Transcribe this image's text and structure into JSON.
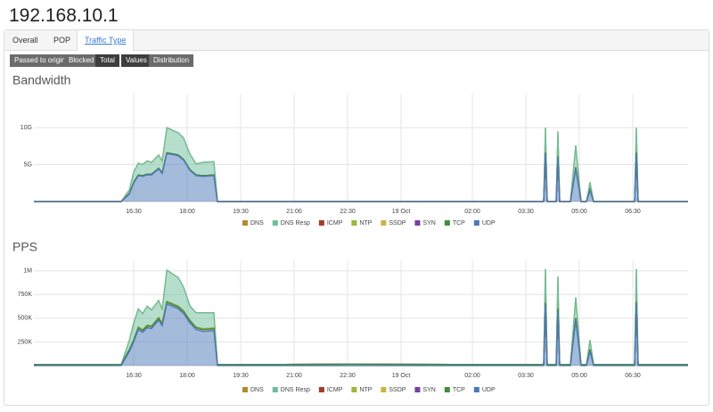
{
  "header": {
    "title": "192.168.10.1"
  },
  "tabs": [
    "Overall",
    "POP",
    "Traffic Type"
  ],
  "filters": [
    "Passed to origin",
    "Blocked",
    "Total"
  ],
  "views": [
    "Values",
    "Distribution"
  ],
  "chart_data": [
    {
      "type": "area",
      "title": "Bandwidth",
      "stacked": true,
      "x": [
        13.7,
        16.15,
        16.38,
        16.5,
        16.63,
        16.75,
        16.88,
        17.0,
        17.2,
        17.3,
        17.43,
        17.75,
        17.9,
        18.08,
        18.25,
        18.45,
        18.75,
        18.85,
        22.5,
        28.0,
        28.05,
        28.1,
        28.35,
        28.4,
        28.45,
        28.75,
        28.9,
        29.05,
        29.2,
        29.3,
        29.4,
        30.55,
        30.6,
        30.65,
        32.05
      ],
      "xlim": [
        13.7,
        32.05
      ],
      "xticks": [
        {
          "value": 16.5,
          "label": "16:30"
        },
        {
          "value": 18,
          "label": "18:00"
        },
        {
          "value": 19.5,
          "label": "19:30"
        },
        {
          "value": 21,
          "label": "21:00"
        },
        {
          "value": 22.5,
          "label": "22:30"
        },
        {
          "value": 24,
          "label": "19 Oct"
        },
        {
          "value": 26,
          "label": "02:00"
        },
        {
          "value": 27.5,
          "label": "03:30"
        },
        {
          "value": 29,
          "label": "05:00"
        },
        {
          "value": 30.5,
          "label": "06:30"
        }
      ],
      "ylim": [
        0,
        14.6
      ],
      "yticks": [
        {
          "value": 5,
          "label": "5G"
        },
        {
          "value": 10,
          "label": "10G"
        }
      ],
      "grid": true,
      "series": [
        {
          "name": "DNS",
          "color": "#b5892f",
          "values": [
            0,
            0,
            0,
            0,
            0,
            0,
            0,
            0,
            0,
            0,
            0,
            0,
            0,
            0,
            0,
            0,
            0,
            0,
            0,
            0,
            0,
            0,
            0,
            0,
            0,
            0,
            0,
            0,
            0,
            0,
            0,
            0,
            0,
            0,
            0
          ]
        },
        {
          "name": "DNS Resp",
          "color": "#6cbf9a",
          "values": [
            0,
            0,
            0.5,
            1.4,
            1.6,
            1.5,
            1.8,
            1.6,
            1.8,
            1.6,
            3.4,
            3.0,
            2.9,
            2.1,
            1.5,
            1.8,
            1.8,
            0,
            0,
            0,
            3.4,
            0,
            0,
            3.4,
            0,
            0,
            3.0,
            0,
            0,
            1.0,
            0,
            0,
            3.4,
            0,
            0
          ]
        },
        {
          "name": "ICMP",
          "color": "#a53a2c",
          "values": [
            0,
            0,
            0,
            0,
            0,
            0,
            0,
            0,
            0,
            0,
            0,
            0,
            0,
            0,
            0,
            0,
            0,
            0,
            0,
            0,
            0,
            0,
            0,
            0,
            0,
            0,
            0,
            0,
            0,
            0,
            0,
            0,
            0,
            0,
            0
          ]
        },
        {
          "name": "NTP",
          "color": "#9ab93a",
          "values": [
            0,
            0,
            0,
            0,
            0,
            0,
            0,
            0,
            0,
            0,
            0,
            0,
            0,
            0,
            0,
            0,
            0,
            0,
            0,
            0,
            0,
            0,
            0,
            0,
            0,
            0,
            0,
            0,
            0,
            0,
            0,
            0,
            0,
            0,
            0
          ]
        },
        {
          "name": "SSDP",
          "color": "#c9b343",
          "values": [
            0,
            0,
            0,
            0,
            0,
            0,
            0,
            0,
            0,
            0,
            0,
            0,
            0,
            0,
            0,
            0,
            0,
            0,
            0,
            0,
            0,
            0,
            0,
            0,
            0,
            0,
            0,
            0,
            0,
            0,
            0,
            0,
            0,
            0,
            0
          ]
        },
        {
          "name": "SYN",
          "color": "#7a3fa0",
          "values": [
            0,
            0,
            0,
            0,
            0,
            0,
            0,
            0,
            0,
            0,
            0,
            0,
            0,
            0,
            0,
            0,
            0,
            0,
            0,
            0,
            0,
            0,
            0,
            0,
            0,
            0,
            0,
            0,
            0,
            0,
            0,
            0,
            0,
            0,
            0
          ]
        },
        {
          "name": "TCP",
          "color": "#3f8f3a",
          "values": [
            0,
            0,
            0.1,
            0.1,
            0.1,
            0.1,
            0.1,
            0.1,
            0.1,
            0.1,
            0.1,
            0.1,
            0.1,
            0.1,
            0.1,
            0.1,
            0.1,
            0,
            0,
            0,
            0.1,
            0,
            0,
            0.1,
            0,
            0,
            0.1,
            0,
            0,
            0.1,
            0,
            0,
            0.1,
            0,
            0
          ]
        },
        {
          "name": "UDP",
          "color": "#4a78b8",
          "values": [
            0,
            0,
            1.0,
            2.5,
            3.5,
            3.4,
            3.6,
            3.6,
            4.4,
            3.8,
            6.5,
            6.2,
            5.6,
            4.2,
            3.5,
            3.4,
            3.5,
            0,
            0,
            0,
            6.5,
            0,
            0,
            6.0,
            0,
            0,
            4.5,
            0,
            0,
            1.5,
            0,
            0,
            6.5,
            0,
            0
          ]
        }
      ]
    },
    {
      "type": "area",
      "title": "PPS",
      "stacked": true,
      "x": [
        13.7,
        16.15,
        16.38,
        16.5,
        16.63,
        16.75,
        16.88,
        17.0,
        17.2,
        17.3,
        17.43,
        17.75,
        17.9,
        18.08,
        18.25,
        18.45,
        18.75,
        18.85,
        22.5,
        28.0,
        28.05,
        28.1,
        28.35,
        28.4,
        28.45,
        28.75,
        28.9,
        29.05,
        29.2,
        29.3,
        29.4,
        30.55,
        30.6,
        30.65,
        32.05
      ],
      "xlim": [
        13.7,
        32.05
      ],
      "xticks": [
        {
          "value": 16.5,
          "label": "16:30"
        },
        {
          "value": 18,
          "label": "18:00"
        },
        {
          "value": 19.5,
          "label": "19:30"
        },
        {
          "value": 21,
          "label": "21:00"
        },
        {
          "value": 22.5,
          "label": "22:30"
        },
        {
          "value": 24,
          "label": "19 Oct"
        },
        {
          "value": 26,
          "label": "02:00"
        },
        {
          "value": 27.5,
          "label": "03:30"
        },
        {
          "value": 29,
          "label": "05:00"
        },
        {
          "value": 30.5,
          "label": "06:30"
        }
      ],
      "ylim": [
        0,
        1110000
      ],
      "yticks": [
        {
          "value": 250000,
          "label": "250K"
        },
        {
          "value": 500000,
          "label": "500K"
        },
        {
          "value": 750000,
          "label": "750K"
        },
        {
          "value": 1000000,
          "label": "1M"
        }
      ],
      "grid": true,
      "series": [
        {
          "name": "DNS",
          "color": "#b5892f",
          "values": [
            0,
            0,
            0,
            0,
            0,
            0,
            0,
            0,
            0,
            0,
            0,
            0,
            0,
            0,
            0,
            0,
            0,
            0,
            0,
            0,
            0,
            0,
            0,
            0,
            0,
            0,
            0,
            0,
            0,
            0,
            0,
            0,
            0,
            0,
            0
          ]
        },
        {
          "name": "DNS Resp",
          "color": "#6cbf9a",
          "values": [
            0,
            0,
            100000,
            180000,
            190000,
            170000,
            200000,
            170000,
            180000,
            150000,
            330000,
            300000,
            250000,
            150000,
            150000,
            170000,
            160000,
            0,
            0,
            0,
            360000,
            0,
            0,
            340000,
            0,
            0,
            220000,
            0,
            0,
            100000,
            0,
            0,
            350000,
            0,
            0
          ]
        },
        {
          "name": "ICMP",
          "color": "#a53a2c",
          "values": [
            0,
            0,
            0,
            0,
            0,
            0,
            0,
            0,
            0,
            0,
            0,
            0,
            0,
            0,
            0,
            0,
            0,
            0,
            0,
            0,
            0,
            0,
            0,
            0,
            0,
            0,
            0,
            0,
            0,
            0,
            0,
            0,
            0,
            0,
            0
          ]
        },
        {
          "name": "NTP",
          "color": "#9ab93a",
          "values": [
            0,
            0,
            0,
            0,
            8000,
            8000,
            8000,
            8000,
            8000,
            8000,
            8000,
            8000,
            8000,
            8000,
            8000,
            8000,
            8000,
            0,
            0,
            0,
            0,
            0,
            0,
            0,
            0,
            0,
            0,
            0,
            0,
            0,
            0,
            0,
            0,
            0,
            0
          ]
        },
        {
          "name": "SSDP",
          "color": "#c9b343",
          "values": [
            0,
            0,
            0,
            0,
            0,
            0,
            0,
            0,
            0,
            0,
            0,
            0,
            0,
            0,
            0,
            0,
            0,
            0,
            0,
            0,
            0,
            0,
            0,
            0,
            0,
            0,
            0,
            0,
            0,
            0,
            0,
            0,
            0,
            0,
            0
          ]
        },
        {
          "name": "SYN",
          "color": "#7a3fa0",
          "values": [
            0,
            0,
            0,
            0,
            0,
            0,
            0,
            0,
            0,
            0,
            0,
            0,
            0,
            0,
            0,
            0,
            0,
            0,
            0,
            0,
            0,
            0,
            0,
            0,
            0,
            0,
            0,
            0,
            0,
            0,
            0,
            0,
            0,
            0,
            0
          ]
        },
        {
          "name": "TCP",
          "color": "#3f8f3a",
          "values": [
            10000,
            10000,
            20000,
            20000,
            20000,
            20000,
            20000,
            20000,
            20000,
            20000,
            20000,
            20000,
            20000,
            20000,
            20000,
            20000,
            20000,
            10000,
            15000,
            10000,
            20000,
            10000,
            10000,
            20000,
            10000,
            10000,
            20000,
            10000,
            10000,
            20000,
            10000,
            10000,
            20000,
            10000,
            10000
          ]
        },
        {
          "name": "UDP",
          "color": "#4a78b8",
          "values": [
            0,
            0,
            150000,
            250000,
            380000,
            350000,
            400000,
            390000,
            480000,
            420000,
            650000,
            600000,
            550000,
            450000,
            380000,
            360000,
            370000,
            0,
            0,
            0,
            640000,
            0,
            0,
            580000,
            0,
            0,
            480000,
            0,
            0,
            150000,
            0,
            0,
            650000,
            0,
            0
          ]
        }
      ]
    }
  ]
}
